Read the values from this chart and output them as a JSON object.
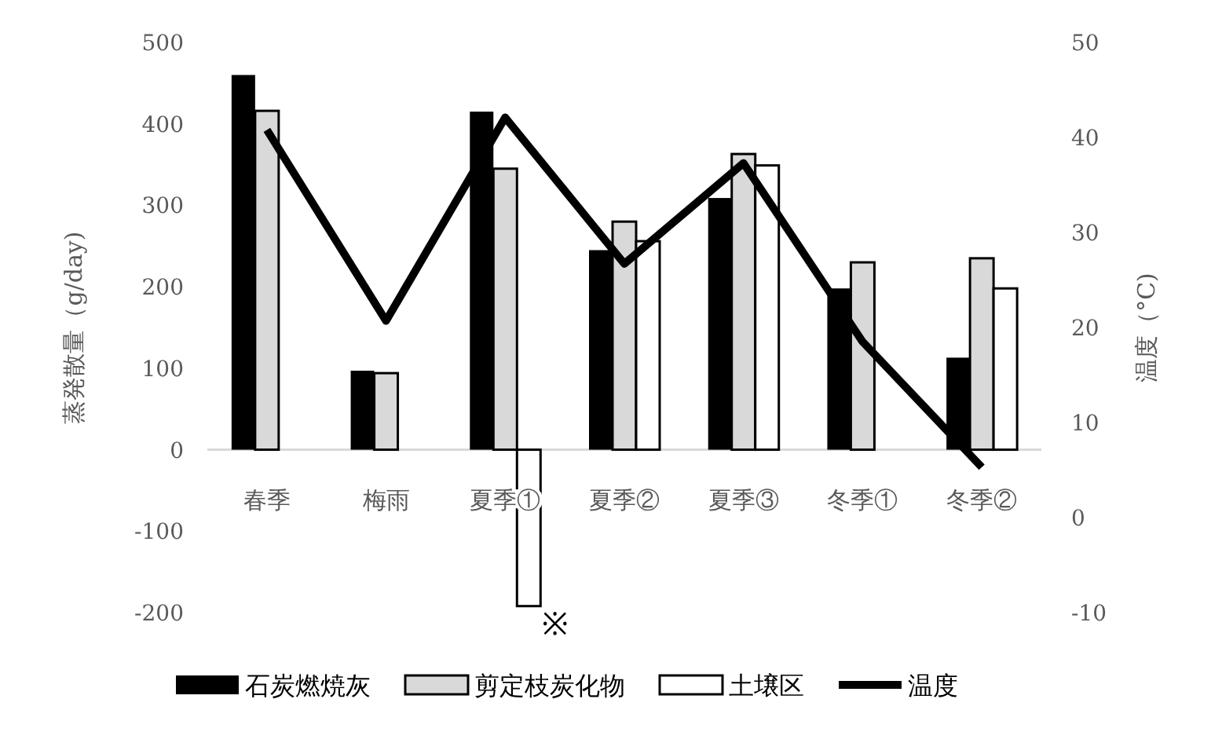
{
  "chart_data": {
    "type": "bar",
    "ylabel": "蒸発散量（g/day)",
    "y2label": "温度（°C)",
    "categories": [
      "春季",
      "梅雨",
      "夏季①",
      "夏季②",
      "夏季③",
      "冬季①",
      "冬季②"
    ],
    "series": [
      {
        "name": "石炭燃焼灰",
        "color": "#000000",
        "values": [
          460,
          97,
          415,
          245,
          309,
          198,
          113
        ]
      },
      {
        "name": "剪定枝炭化物",
        "color": "#d9d9d9",
        "values": [
          416,
          94,
          345,
          280,
          363,
          230,
          235
        ]
      },
      {
        "name": "土壌区",
        "color": "#ffffff",
        "values": [
          null,
          null,
          -192,
          256,
          349,
          null,
          198
        ]
      },
      {
        "name": "温度",
        "type": "line",
        "axis": "y2",
        "color": "#000000",
        "values": [
          40.8,
          20.7,
          42.1,
          26.7,
          37.3,
          18.5,
          5.3
        ]
      }
    ],
    "ylim": [
      -200,
      500
    ],
    "yticks": [
      -200,
      -100,
      0,
      100,
      200,
      300,
      400,
      500
    ],
    "y2lim": [
      -10,
      50
    ],
    "y2ticks": [
      -10,
      0,
      10,
      20,
      30,
      40,
      50
    ],
    "legend": "bottom",
    "annotations": [
      "※"
    ]
  }
}
